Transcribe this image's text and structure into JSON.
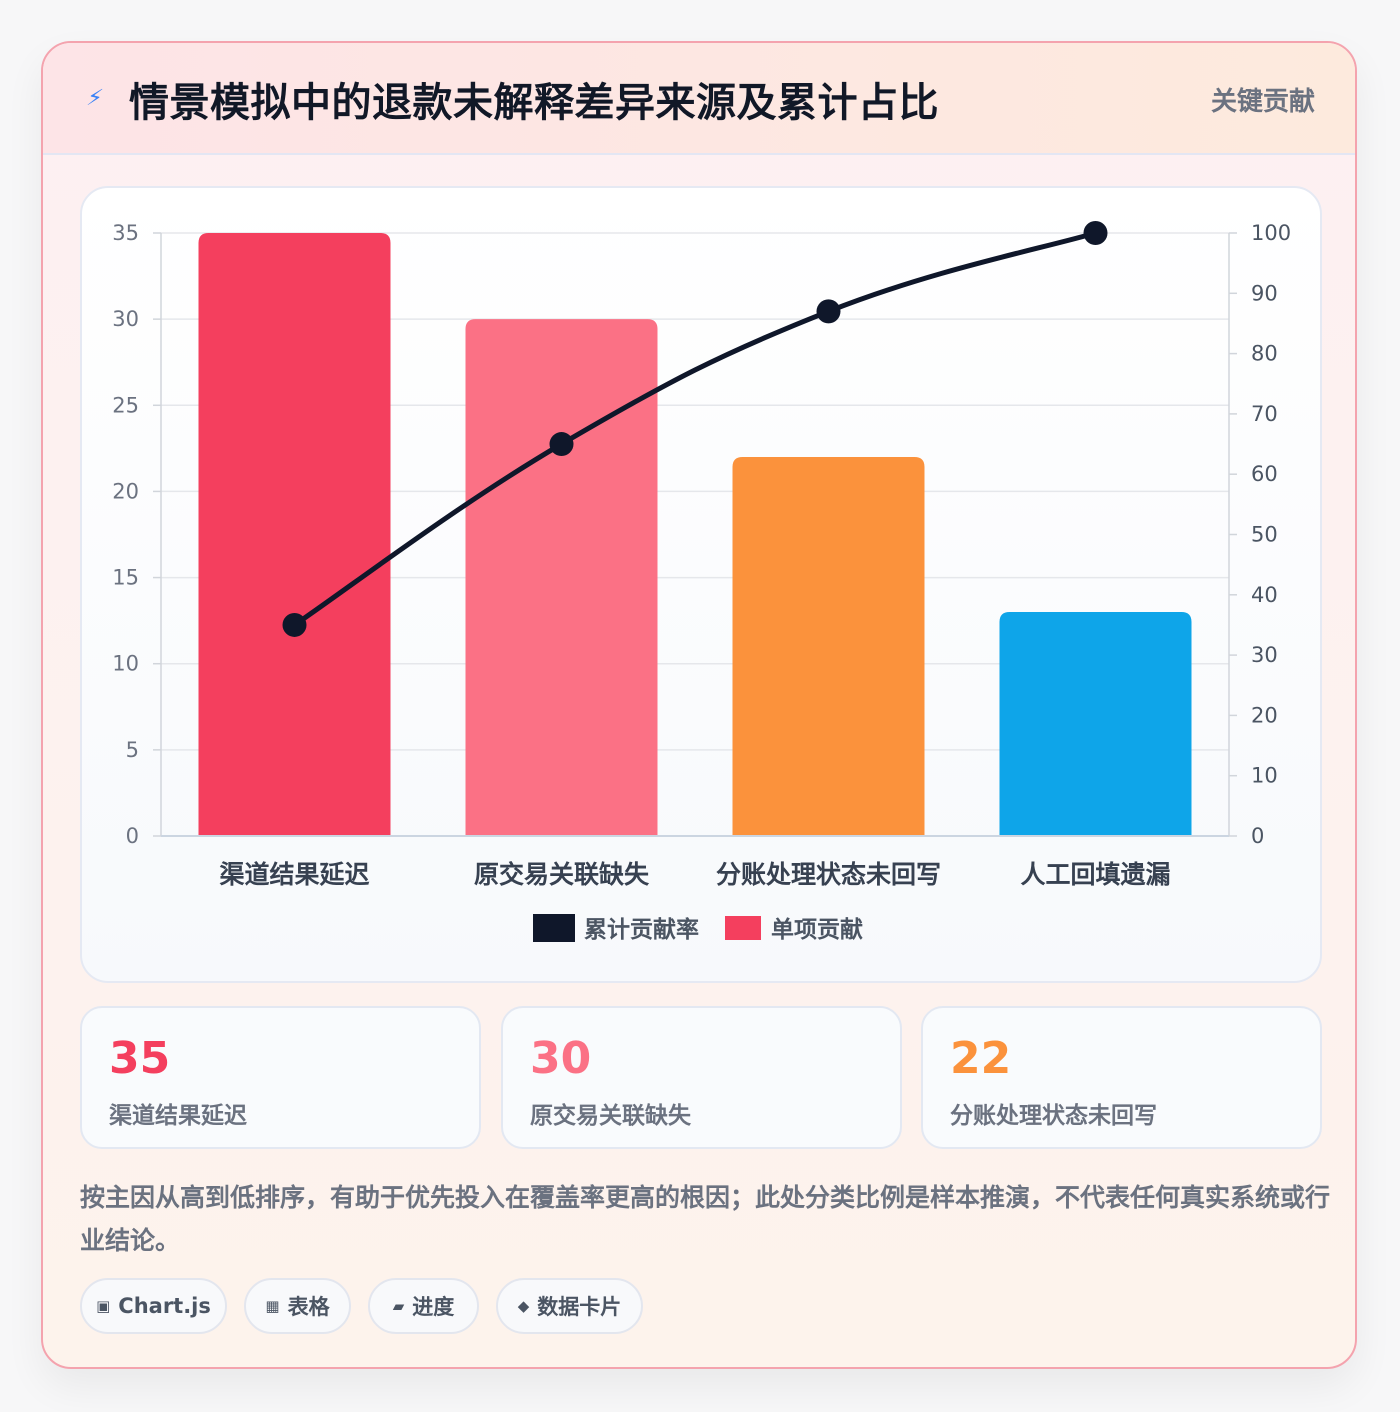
{
  "header": {
    "title": "情景模拟中的退款未解释差异来源及累计占比",
    "tag": "关键贡献"
  },
  "colors": {
    "bars": [
      "#f43f5e",
      "#fb7185",
      "#fb923c",
      "#0ea5e9"
    ],
    "line": "#0f172a",
    "legend_bar": "#f43f5e"
  },
  "chart_data": {
    "type": "bar",
    "categories": [
      "渠道结果延迟",
      "原交易关联缺失",
      "分账处理状态未回写",
      "人工回填遗漏"
    ],
    "series": [
      {
        "name": "单项贡献",
        "type": "bar",
        "axis": "left",
        "values": [
          35,
          30,
          22,
          13
        ]
      },
      {
        "name": "累计贡献率",
        "type": "line",
        "axis": "right",
        "values": [
          35,
          65,
          87,
          100
        ]
      }
    ],
    "left_axis": {
      "min": 0,
      "max": 35,
      "ticks": [
        0,
        5,
        10,
        15,
        20,
        25,
        30,
        35
      ]
    },
    "right_axis": {
      "min": 0,
      "max": 100,
      "ticks": [
        0,
        10,
        20,
        30,
        40,
        50,
        60,
        70,
        80,
        90,
        100
      ]
    },
    "legend": [
      "累计贡献率",
      "单项贡献"
    ],
    "legend_position": "bottom",
    "grid": true
  },
  "stats": [
    {
      "value": "35",
      "label": "渠道结果延迟",
      "color": "#f43f5e"
    },
    {
      "value": "30",
      "label": "原交易关联缺失",
      "color": "#fb7185"
    },
    {
      "value": "22",
      "label": "分账处理状态未回写",
      "color": "#fb923c"
    }
  ],
  "note": "按主因从高到低排序，有助于优先投入在覆盖率更高的根因；此处分类比例是样本推演，不代表任何真实系统或行业结论。",
  "chips": [
    {
      "icon": "▣",
      "label": "Chart.js"
    },
    {
      "icon": "▦",
      "label": "表格"
    },
    {
      "icon": "▰",
      "label": "进度"
    },
    {
      "icon": "◆",
      "label": "数据卡片"
    }
  ]
}
